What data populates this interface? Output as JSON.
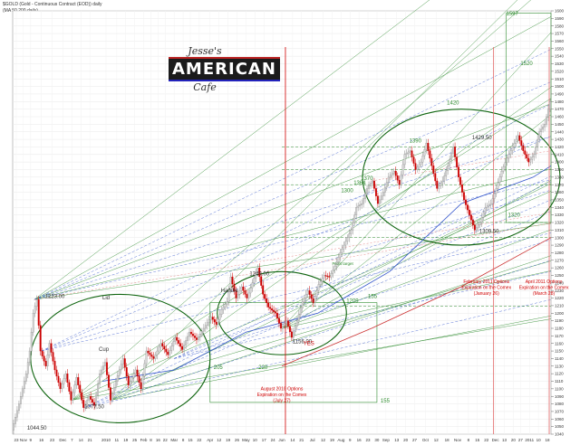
{
  "header": {
    "title": "$GOLD (Gold - Continuous Contract (EOD)) daily",
    "subtitle": "(MA 50 200 daily)"
  },
  "logo": {
    "line1": "Jesse's",
    "line2": "AMERICAN",
    "line3": "Cafe"
  },
  "colors": {
    "up": "#d8d8d8",
    "down": "#cc0000",
    "green": "#2e8b2e",
    "blue": "#3355cc",
    "red": "#d00000",
    "pink": "#e88888",
    "grid": "#e8e8e8"
  },
  "chart_data": {
    "type": "candlestick",
    "ylim": [
      1040,
      1600
    ],
    "xlim": [
      0,
      300
    ],
    "grid": true,
    "price_ticks": [
      1040,
      1050,
      1060,
      1070,
      1080,
      1090,
      1100,
      1110,
      1120,
      1130,
      1140,
      1150,
      1160,
      1170,
      1180,
      1190,
      1200,
      1210,
      1220,
      1230,
      1240,
      1250,
      1260,
      1270,
      1280,
      1290,
      1300,
      1310,
      1320,
      1330,
      1340,
      1350,
      1360,
      1370,
      1380,
      1390,
      1400,
      1410,
      1420,
      1430,
      1440,
      1450,
      1460,
      1470,
      1480,
      1490,
      1500,
      1510,
      1520,
      1530,
      1540,
      1550,
      1560,
      1570,
      1580,
      1590,
      1600
    ],
    "date_ticks": [
      {
        "x": 2,
        "label": "23"
      },
      {
        "x": 6,
        "label": "Nov"
      },
      {
        "x": 10,
        "label": "9"
      },
      {
        "x": 16,
        "label": "16"
      },
      {
        "x": 22,
        "label": "23"
      },
      {
        "x": 28,
        "label": "Dec"
      },
      {
        "x": 33,
        "label": "7"
      },
      {
        "x": 38,
        "label": "14"
      },
      {
        "x": 43,
        "label": "21"
      },
      {
        "x": 52,
        "label": "2010"
      },
      {
        "x": 58,
        "label": "11"
      },
      {
        "x": 63,
        "label": "19"
      },
      {
        "x": 68,
        "label": "25"
      },
      {
        "x": 73,
        "label": "Feb"
      },
      {
        "x": 77,
        "label": "8"
      },
      {
        "x": 81,
        "label": "16"
      },
      {
        "x": 85,
        "label": "22"
      },
      {
        "x": 90,
        "label": "Mar"
      },
      {
        "x": 95,
        "label": "8"
      },
      {
        "x": 99,
        "label": "15"
      },
      {
        "x": 104,
        "label": "22"
      },
      {
        "x": 110,
        "label": "Apr"
      },
      {
        "x": 115,
        "label": "12"
      },
      {
        "x": 120,
        "label": "19"
      },
      {
        "x": 125,
        "label": "26"
      },
      {
        "x": 130,
        "label": "May"
      },
      {
        "x": 135,
        "label": "10"
      },
      {
        "x": 140,
        "label": "17"
      },
      {
        "x": 145,
        "label": "24"
      },
      {
        "x": 150,
        "label": "Jun"
      },
      {
        "x": 156,
        "label": "14"
      },
      {
        "x": 161,
        "label": "21"
      },
      {
        "x": 167,
        "label": "Jul"
      },
      {
        "x": 173,
        "label": "12"
      },
      {
        "x": 178,
        "label": "19"
      },
      {
        "x": 183,
        "label": "Aug"
      },
      {
        "x": 188,
        "label": "9"
      },
      {
        "x": 193,
        "label": "16"
      },
      {
        "x": 198,
        "label": "23"
      },
      {
        "x": 203,
        "label": "30"
      },
      {
        "x": 208,
        "label": "Sep"
      },
      {
        "x": 214,
        "label": "13"
      },
      {
        "x": 219,
        "label": "20"
      },
      {
        "x": 224,
        "label": "27"
      },
      {
        "x": 230,
        "label": "Oct"
      },
      {
        "x": 236,
        "label": "12"
      },
      {
        "x": 242,
        "label": "18"
      },
      {
        "x": 248,
        "label": "Nov"
      },
      {
        "x": 254,
        "label": "8"
      },
      {
        "x": 259,
        "label": "15"
      },
      {
        "x": 264,
        "label": "22"
      },
      {
        "x": 269,
        "label": "Dec"
      },
      {
        "x": 274,
        "label": "13"
      },
      {
        "x": 279,
        "label": "20"
      },
      {
        "x": 283,
        "label": "27"
      },
      {
        "x": 288,
        "label": "2011"
      },
      {
        "x": 293,
        "label": "10"
      },
      {
        "x": 298,
        "label": "18"
      }
    ],
    "price_path": [
      [
        0,
        1045
      ],
      [
        4,
        1080
      ],
      [
        8,
        1120
      ],
      [
        10,
        1150
      ],
      [
        12,
        1200
      ],
      [
        14,
        1218
      ],
      [
        16,
        1150
      ],
      [
        19,
        1130
      ],
      [
        21,
        1160
      ],
      [
        24,
        1125
      ],
      [
        27,
        1100
      ],
      [
        30,
        1120
      ],
      [
        33,
        1085
      ],
      [
        36,
        1115
      ],
      [
        40,
        1075
      ],
      [
        43,
        1090
      ],
      [
        46,
        1078
      ],
      [
        49,
        1120
      ],
      [
        52,
        1135
      ],
      [
        55,
        1085
      ],
      [
        58,
        1110
      ],
      [
        62,
        1140
      ],
      [
        65,
        1105
      ],
      [
        69,
        1125
      ],
      [
        72,
        1100
      ],
      [
        75,
        1150
      ],
      [
        79,
        1140
      ],
      [
        83,
        1160
      ],
      [
        87,
        1145
      ],
      [
        91,
        1168
      ],
      [
        95,
        1152
      ],
      [
        99,
        1175
      ],
      [
        103,
        1165
      ],
      [
        107,
        1180
      ],
      [
        111,
        1195
      ],
      [
        114,
        1185
      ],
      [
        117,
        1205
      ],
      [
        120,
        1215
      ],
      [
        122,
        1248
      ],
      [
        125,
        1220
      ],
      [
        128,
        1235
      ],
      [
        131,
        1220
      ],
      [
        134,
        1240
      ],
      [
        137,
        1260
      ],
      [
        140,
        1225
      ],
      [
        143,
        1208
      ],
      [
        147,
        1200
      ],
      [
        150,
        1180
      ],
      [
        153,
        1190
      ],
      [
        156,
        1168
      ],
      [
        159,
        1190
      ],
      [
        162,
        1215
      ],
      [
        165,
        1230
      ],
      [
        168,
        1214
      ],
      [
        171,
        1238
      ],
      [
        174,
        1250
      ],
      [
        177,
        1248
      ],
      [
        180,
        1262
      ],
      [
        183,
        1280
      ],
      [
        186,
        1295
      ],
      [
        189,
        1310
      ],
      [
        192,
        1340
      ],
      [
        195,
        1345
      ],
      [
        198,
        1365
      ],
      [
        201,
        1375
      ],
      [
        204,
        1345
      ],
      [
        207,
        1360
      ],
      [
        210,
        1380
      ],
      [
        213,
        1388
      ],
      [
        216,
        1370
      ],
      [
        219,
        1410
      ],
      [
        222,
        1415
      ],
      [
        225,
        1390
      ],
      [
        228,
        1400
      ],
      [
        231,
        1425
      ],
      [
        234,
        1395
      ],
      [
        237,
        1365
      ],
      [
        240,
        1375
      ],
      [
        243,
        1395
      ],
      [
        246,
        1420
      ],
      [
        249,
        1380
      ],
      [
        252,
        1350
      ],
      [
        255,
        1330
      ],
      [
        258,
        1310
      ],
      [
        261,
        1320
      ],
      [
        264,
        1340
      ],
      [
        267,
        1345
      ],
      [
        270,
        1365
      ],
      [
        273,
        1388
      ],
      [
        276,
        1405
      ],
      [
        279,
        1420
      ],
      [
        282,
        1435
      ],
      [
        285,
        1415
      ],
      [
        288,
        1400
      ],
      [
        291,
        1410
      ],
      [
        294,
        1440
      ],
      [
        297,
        1450
      ],
      [
        300,
        1480
      ]
    ],
    "ma_paths": [
      {
        "name": "MA50",
        "points": [
          [
            50,
            1110
          ],
          [
            90,
            1125
          ],
          [
            130,
            1175
          ],
          [
            170,
            1200
          ],
          [
            210,
            1255
          ],
          [
            250,
            1345
          ],
          [
            290,
            1380
          ],
          [
            300,
            1395
          ]
        ]
      },
      {
        "name": "MA200",
        "points": [
          [
            150,
            1130
          ],
          [
            200,
            1180
          ],
          [
            250,
            1235
          ],
          [
            300,
            1300
          ]
        ]
      }
    ],
    "patterns": [
      {
        "type": "ellipse",
        "name": "cup",
        "cx": 60,
        "cy": 1140,
        "rx": 50,
        "ry": 85
      },
      {
        "type": "ellipse",
        "name": "handle",
        "cx": 150,
        "cy": 1200,
        "rx": 36,
        "ry": 55
      },
      {
        "type": "ellipse",
        "name": "top",
        "cx": 250,
        "cy": 1380,
        "rx": 55,
        "ry": 90
      }
    ],
    "labels": [
      {
        "text": "Lid",
        "x": 50,
        "y": 1218,
        "color": "#333"
      },
      {
        "text": "Handle",
        "x": 116,
        "y": 1228,
        "color": "#333"
      },
      {
        "text": "Cup",
        "x": 48,
        "y": 1150,
        "color": "#333"
      },
      {
        "text": "205",
        "x": 112,
        "y": 1126,
        "color": "#2e8b2e"
      },
      {
        "text": "220",
        "x": 137,
        "y": 1126,
        "color": "#2e8b2e"
      },
      {
        "text": "155",
        "x": 198,
        "y": 1220,
        "color": "#2e8b2e"
      },
      {
        "text": "155",
        "x": 205,
        "y": 1082,
        "color": "#2e8b2e"
      },
      {
        "text": "1209",
        "x": 186,
        "y": 1214,
        "color": "#2e8b2e"
      },
      {
        "text": "1320",
        "x": 276,
        "y": 1328,
        "color": "#2e8b2e"
      },
      {
        "text": "1597",
        "x": 275,
        "y": 1594,
        "color": "#2e8b2e"
      },
      {
        "text": "1520",
        "x": 283,
        "y": 1528,
        "color": "#2e8b2e"
      },
      {
        "text": "1420",
        "x": 242,
        "y": 1476,
        "color": "#2e8b2e"
      },
      {
        "text": "1390",
        "x": 221,
        "y": 1426,
        "color": "#2e8b2e"
      },
      {
        "text": "1370",
        "x": 194,
        "y": 1376,
        "color": "#2e8b2e"
      },
      {
        "text": "1364",
        "x": 190,
        "y": 1370,
        "color": "#2e8b2e"
      },
      {
        "text": "1300",
        "x": 183,
        "y": 1360,
        "color": "#2e8b2e"
      },
      {
        "text": "Profit target",
        "x": 178,
        "y": 1264,
        "color": "#2e8b2e"
      },
      {
        "text": "1249.00",
        "x": 132,
        "y": 1250,
        "color": "#333"
      },
      {
        "text": "1223.00",
        "x": 18,
        "y": 1220,
        "color": "#333"
      },
      {
        "text": "1044.50",
        "x": 8,
        "y": 1046,
        "color": "#333"
      },
      {
        "text": "1077.50",
        "x": 40,
        "y": 1074,
        "color": "#333"
      },
      {
        "text": "1156.00",
        "x": 156,
        "y": 1160,
        "color": "#333"
      },
      {
        "text": "1309.50",
        "x": 260,
        "y": 1306,
        "color": "#333"
      },
      {
        "text": "1429.50",
        "x": 256,
        "y": 1430,
        "color": "#333"
      },
      {
        "text": "YES",
        "x": 162,
        "y": 1158,
        "color": "#d00000"
      }
    ],
    "notes": [
      {
        "lines": [
          "August 2010 Options",
          "Expiration on the Comex",
          "(July 27)"
        ],
        "x": 150,
        "y": 1098,
        "color": "#d00000"
      },
      {
        "lines": [
          "February 2011 Options",
          "Expiration on the Comex",
          "(January 26)"
        ],
        "x": 264,
        "y": 1240,
        "color": "#d00000"
      },
      {
        "lines": [
          "April 2011 Options",
          "Expiration on the Comex",
          "(March 28)"
        ],
        "x": 296,
        "y": 1240,
        "color": "#d00000"
      }
    ],
    "events": [
      {
        "x": 152,
        "color": "#d00000"
      },
      {
        "x": 268,
        "color": "#e06666"
      },
      {
        "x": 299,
        "color": "#e06666"
      }
    ]
  }
}
